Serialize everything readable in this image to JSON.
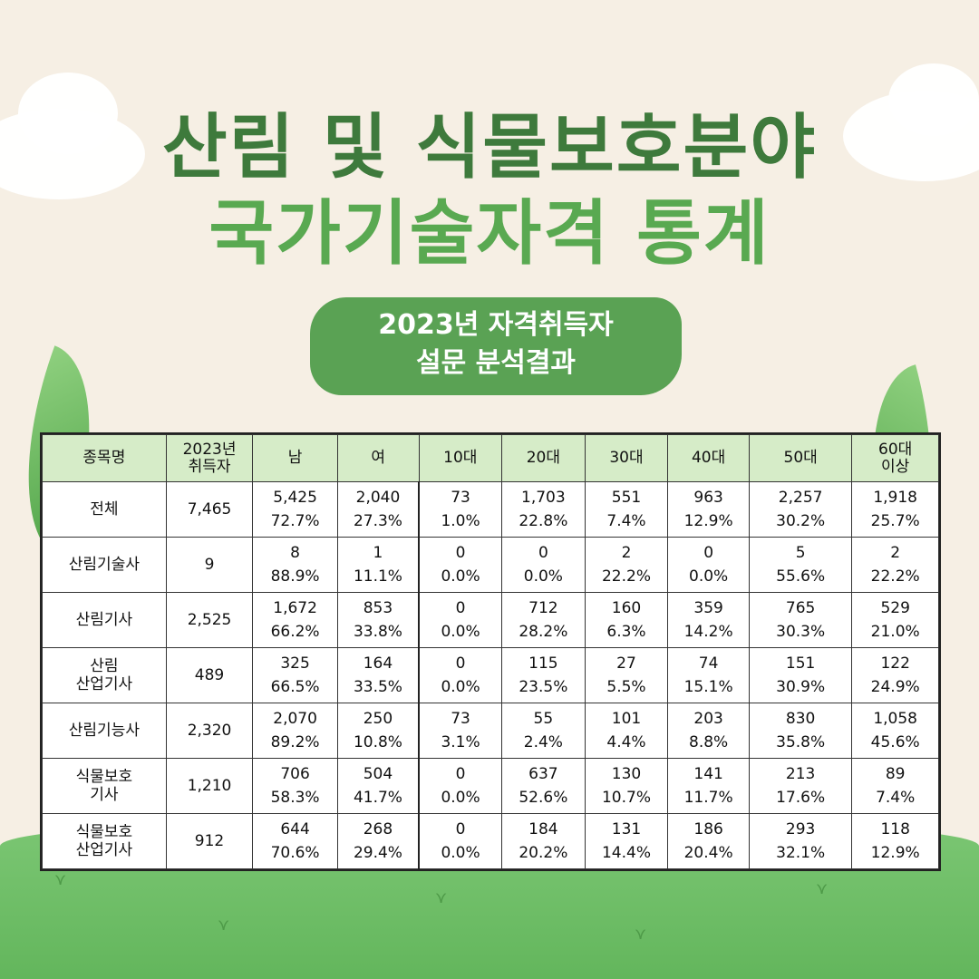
{
  "title": {
    "line1": "산림 및 식물보호분야",
    "line2": "국가기술자격 통계"
  },
  "badge": {
    "line1": "2023년 자격취득자",
    "line2": "설문 분석결과"
  },
  "table": {
    "headers": [
      "종목명",
      "2023년\n취득자",
      "남",
      "여",
      "10대",
      "20대",
      "30대",
      "40대",
      "50대",
      "60대\n이상"
    ],
    "rows": [
      {
        "name": "전체",
        "total": "7,465",
        "cells": [
          [
            "5,425",
            "72.7%"
          ],
          [
            "2,040",
            "27.3%"
          ],
          [
            "73",
            "1.0%"
          ],
          [
            "1,703",
            "22.8%"
          ],
          [
            "551",
            "7.4%"
          ],
          [
            "963",
            "12.9%"
          ],
          [
            "2,257",
            "30.2%"
          ],
          [
            "1,918",
            "25.7%"
          ]
        ]
      },
      {
        "name": "산림기술사",
        "total": "9",
        "cells": [
          [
            "8",
            "88.9%"
          ],
          [
            "1",
            "11.1%"
          ],
          [
            "0",
            "0.0%"
          ],
          [
            "0",
            "0.0%"
          ],
          [
            "2",
            "22.2%"
          ],
          [
            "0",
            "0.0%"
          ],
          [
            "5",
            "55.6%"
          ],
          [
            "2",
            "22.2%"
          ]
        ]
      },
      {
        "name": "산림기사",
        "total": "2,525",
        "cells": [
          [
            "1,672",
            "66.2%"
          ],
          [
            "853",
            "33.8%"
          ],
          [
            "0",
            "0.0%"
          ],
          [
            "712",
            "28.2%"
          ],
          [
            "160",
            "6.3%"
          ],
          [
            "359",
            "14.2%"
          ],
          [
            "765",
            "30.3%"
          ],
          [
            "529",
            "21.0%"
          ]
        ]
      },
      {
        "name": "산림\n산업기사",
        "total": "489",
        "cells": [
          [
            "325",
            "66.5%"
          ],
          [
            "164",
            "33.5%"
          ],
          [
            "0",
            "0.0%"
          ],
          [
            "115",
            "23.5%"
          ],
          [
            "27",
            "5.5%"
          ],
          [
            "74",
            "15.1%"
          ],
          [
            "151",
            "30.9%"
          ],
          [
            "122",
            "24.9%"
          ]
        ]
      },
      {
        "name": "산림기능사",
        "total": "2,320",
        "cells": [
          [
            "2,070",
            "89.2%"
          ],
          [
            "250",
            "10.8%"
          ],
          [
            "73",
            "3.1%"
          ],
          [
            "55",
            "2.4%"
          ],
          [
            "101",
            "4.4%"
          ],
          [
            "203",
            "8.8%"
          ],
          [
            "830",
            "35.8%"
          ],
          [
            "1,058",
            "45.6%"
          ]
        ]
      },
      {
        "name": "식물보호\n기사",
        "total": "1,210",
        "cells": [
          [
            "706",
            "58.3%"
          ],
          [
            "504",
            "41.7%"
          ],
          [
            "0",
            "0.0%"
          ],
          [
            "637",
            "52.6%"
          ],
          [
            "130",
            "10.7%"
          ],
          [
            "141",
            "11.7%"
          ],
          [
            "213",
            "17.6%"
          ],
          [
            "89",
            "7.4%"
          ]
        ]
      },
      {
        "name": "식물보호\n산업기사",
        "total": "912",
        "cells": [
          [
            "644",
            "70.6%"
          ],
          [
            "268",
            "29.4%"
          ],
          [
            "0",
            "0.0%"
          ],
          [
            "184",
            "20.2%"
          ],
          [
            "131",
            "14.4%"
          ],
          [
            "186",
            "20.4%"
          ],
          [
            "293",
            "32.1%"
          ],
          [
            "118",
            "12.9%"
          ]
        ]
      }
    ]
  }
}
